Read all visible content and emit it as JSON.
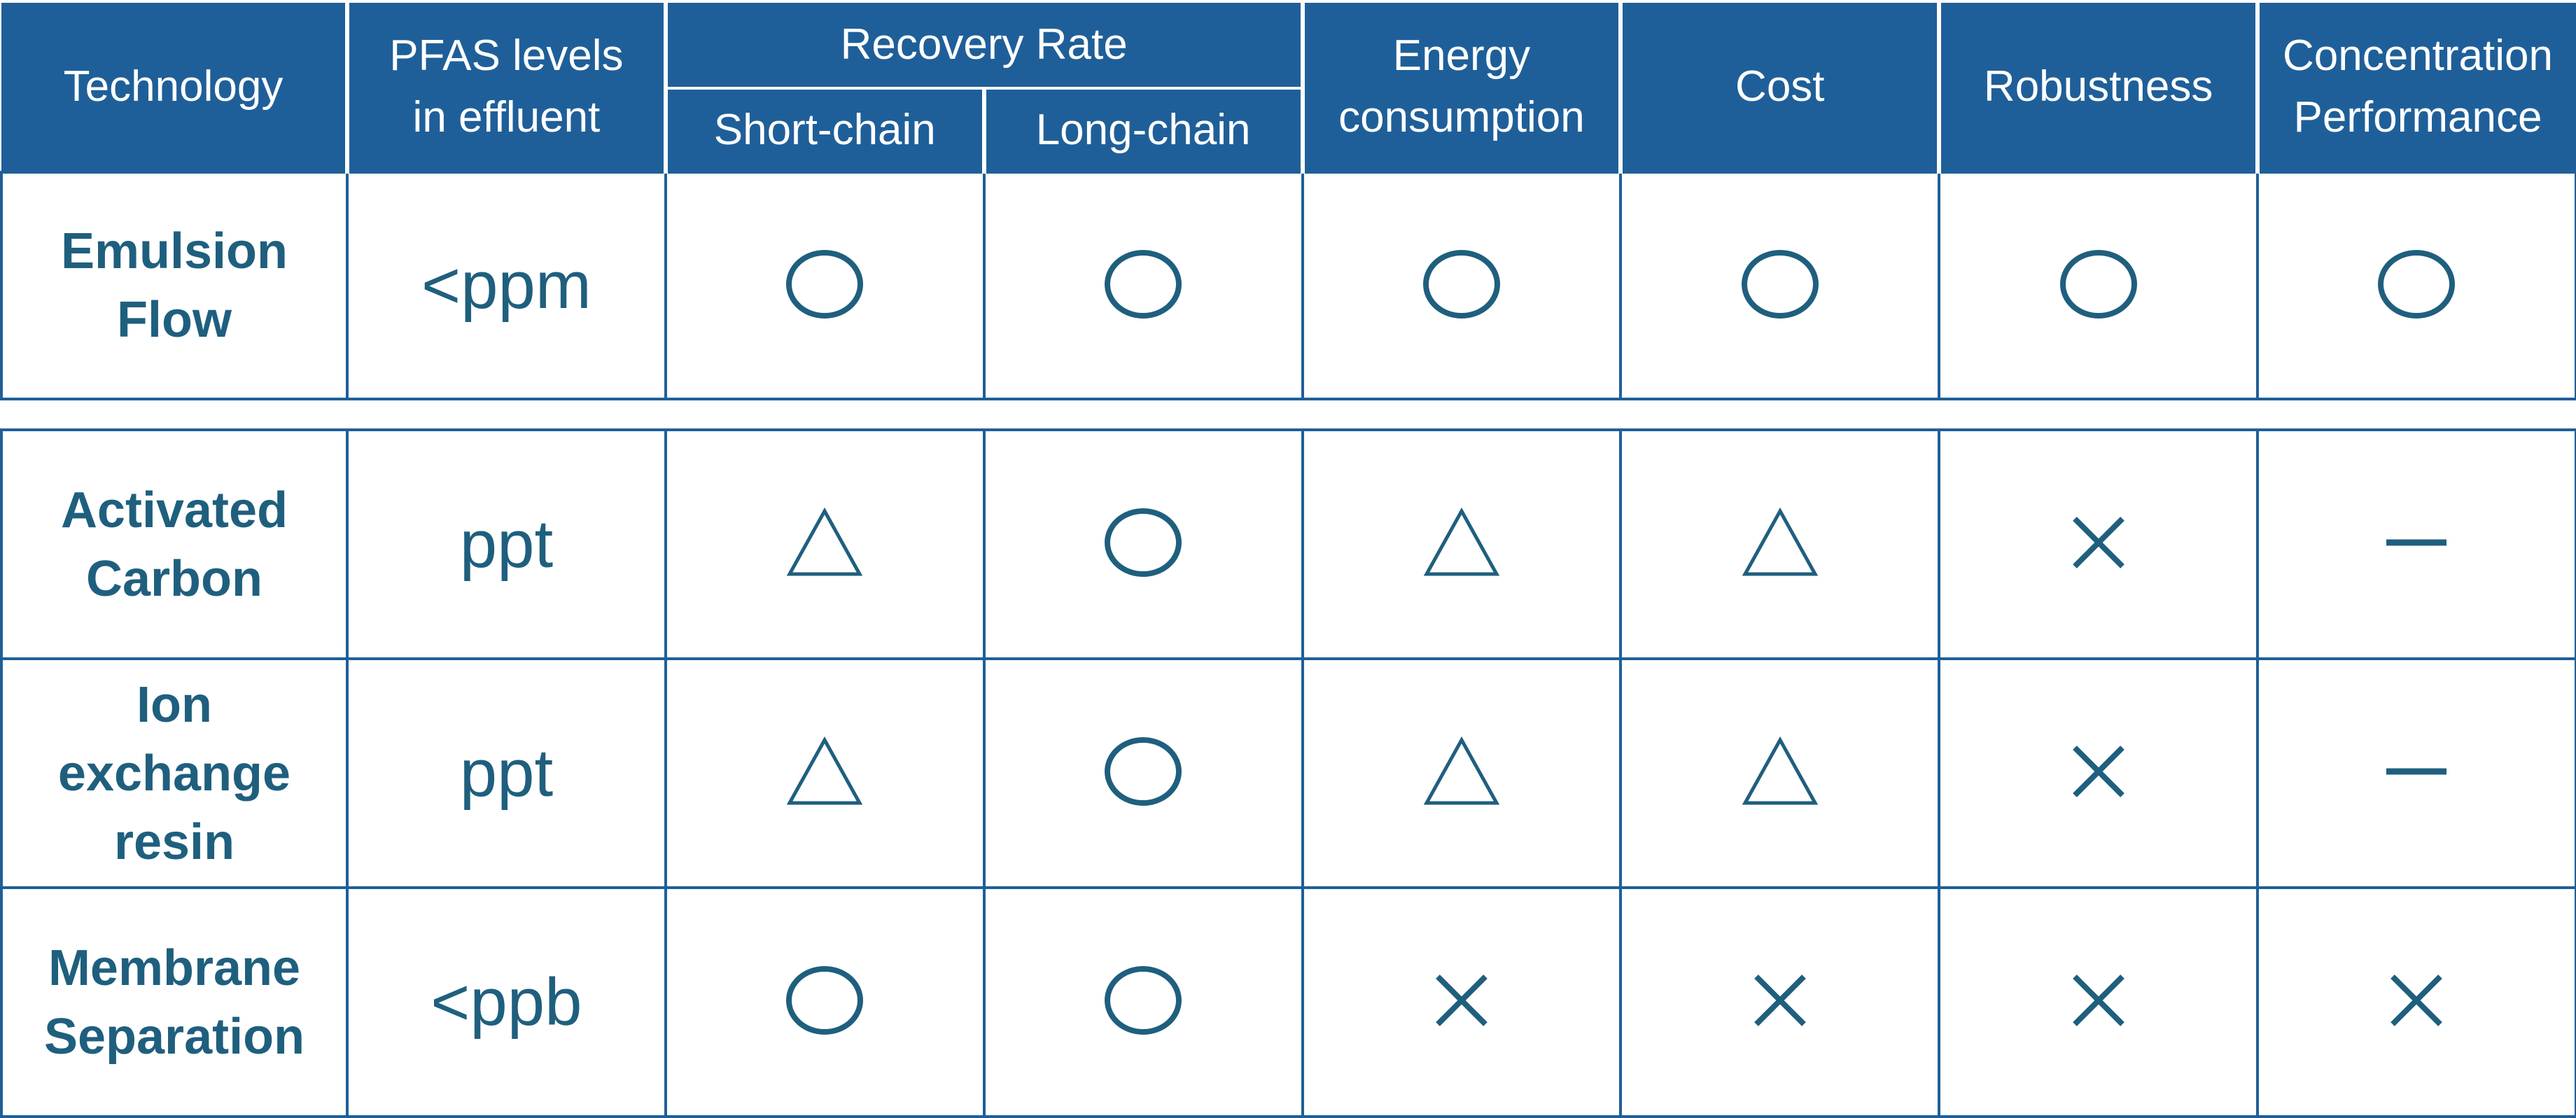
{
  "header": {
    "technology": "Technology",
    "pfas_levels": "PFAS levels\nin effluent",
    "recovery_rate": "Recovery Rate",
    "short_chain": "Short-chain",
    "long_chain": "Long-chain",
    "energy": "Energy\nconsumption",
    "cost": "Cost",
    "robustness": "Robustness",
    "concentration": "Concentration\nPerformance"
  },
  "rows": [
    {
      "technology": "Emulsion\nFlow",
      "level": "<ppm",
      "ratings": [
        "circle-icon",
        "circle-icon",
        "circle-icon",
        "circle-icon",
        "circle-icon",
        "circle-icon"
      ]
    },
    {
      "technology": "Activated\nCarbon",
      "level": "ppt",
      "ratings": [
        "triangle-icon",
        "circle-icon",
        "triangle-icon",
        "triangle-icon",
        "cross-icon",
        "dash-icon"
      ]
    },
    {
      "technology": "Ion\nexchange\nresin",
      "level": "ppt",
      "ratings": [
        "triangle-icon",
        "circle-icon",
        "triangle-icon",
        "triangle-icon",
        "cross-icon",
        "dash-icon"
      ]
    },
    {
      "technology": "Membrane\nSeparation",
      "level": "<ppb",
      "ratings": [
        "circle-icon",
        "circle-icon",
        "cross-icon",
        "cross-icon",
        "cross-icon",
        "cross-icon"
      ]
    }
  ],
  "colors": {
    "header_bg": "#1f5f99",
    "text": "#1f5f7e",
    "border": "#1f5f99"
  }
}
